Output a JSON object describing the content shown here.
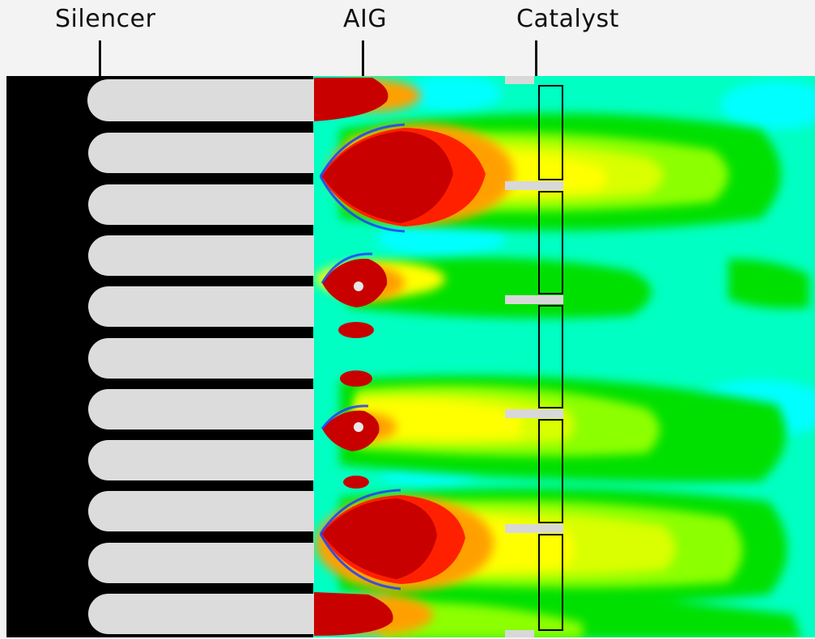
{
  "labels": {
    "silencer": "Silencer",
    "aig": "AIG",
    "catalyst": "Catalyst"
  },
  "colors": {
    "background": "#f3f3f3",
    "wall": "#000000",
    "baffle": "#dcdcdc",
    "catalyst_outline": "#000000",
    "contour_levels": [
      "#00ffc2",
      "#00ffff",
      "#00e000",
      "#8cff00",
      "#d9ff00",
      "#ffff00",
      "#ffc000",
      "#ff8000",
      "#ff2000",
      "#c80000"
    ]
  }
}
